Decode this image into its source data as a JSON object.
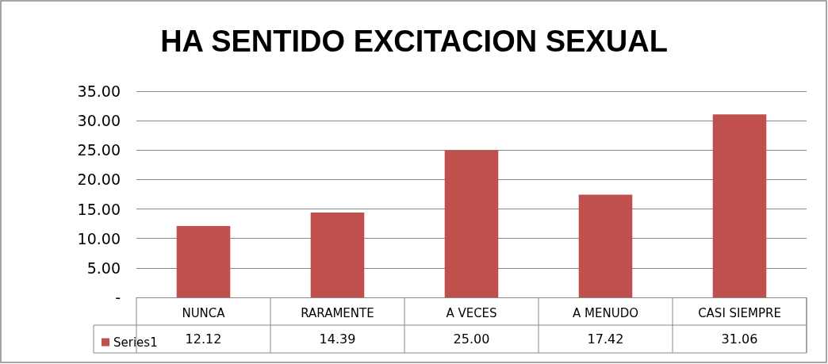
{
  "chart_data": {
    "type": "bar",
    "title": "HA SENTIDO EXCITACION SEXUAL",
    "categories": [
      "NUNCA",
      "RARAMENTE",
      "A VECES",
      "A MENUDO",
      "CASI SIEMPRE"
    ],
    "series": [
      {
        "name": "Series1",
        "color": "#c0504d",
        "values": [
          12.12,
          14.39,
          25.0,
          17.42,
          31.06
        ],
        "value_labels": [
          "12.12",
          "14.39",
          "25.00",
          "17.42",
          "31.06"
        ]
      }
    ],
    "ylim": [
      0,
      35
    ],
    "yticks": [
      {
        "value": 0,
        "label": "-"
      },
      {
        "value": 5,
        "label": "5.00"
      },
      {
        "value": 10,
        "label": "10.00"
      },
      {
        "value": 15,
        "label": "15.00"
      },
      {
        "value": 20,
        "label": "20.00"
      },
      {
        "value": 25,
        "label": "25.00"
      },
      {
        "value": 30,
        "label": "30.00"
      },
      {
        "value": 35,
        "label": "35.00"
      }
    ],
    "grid": "y",
    "legend": "bottom left"
  }
}
